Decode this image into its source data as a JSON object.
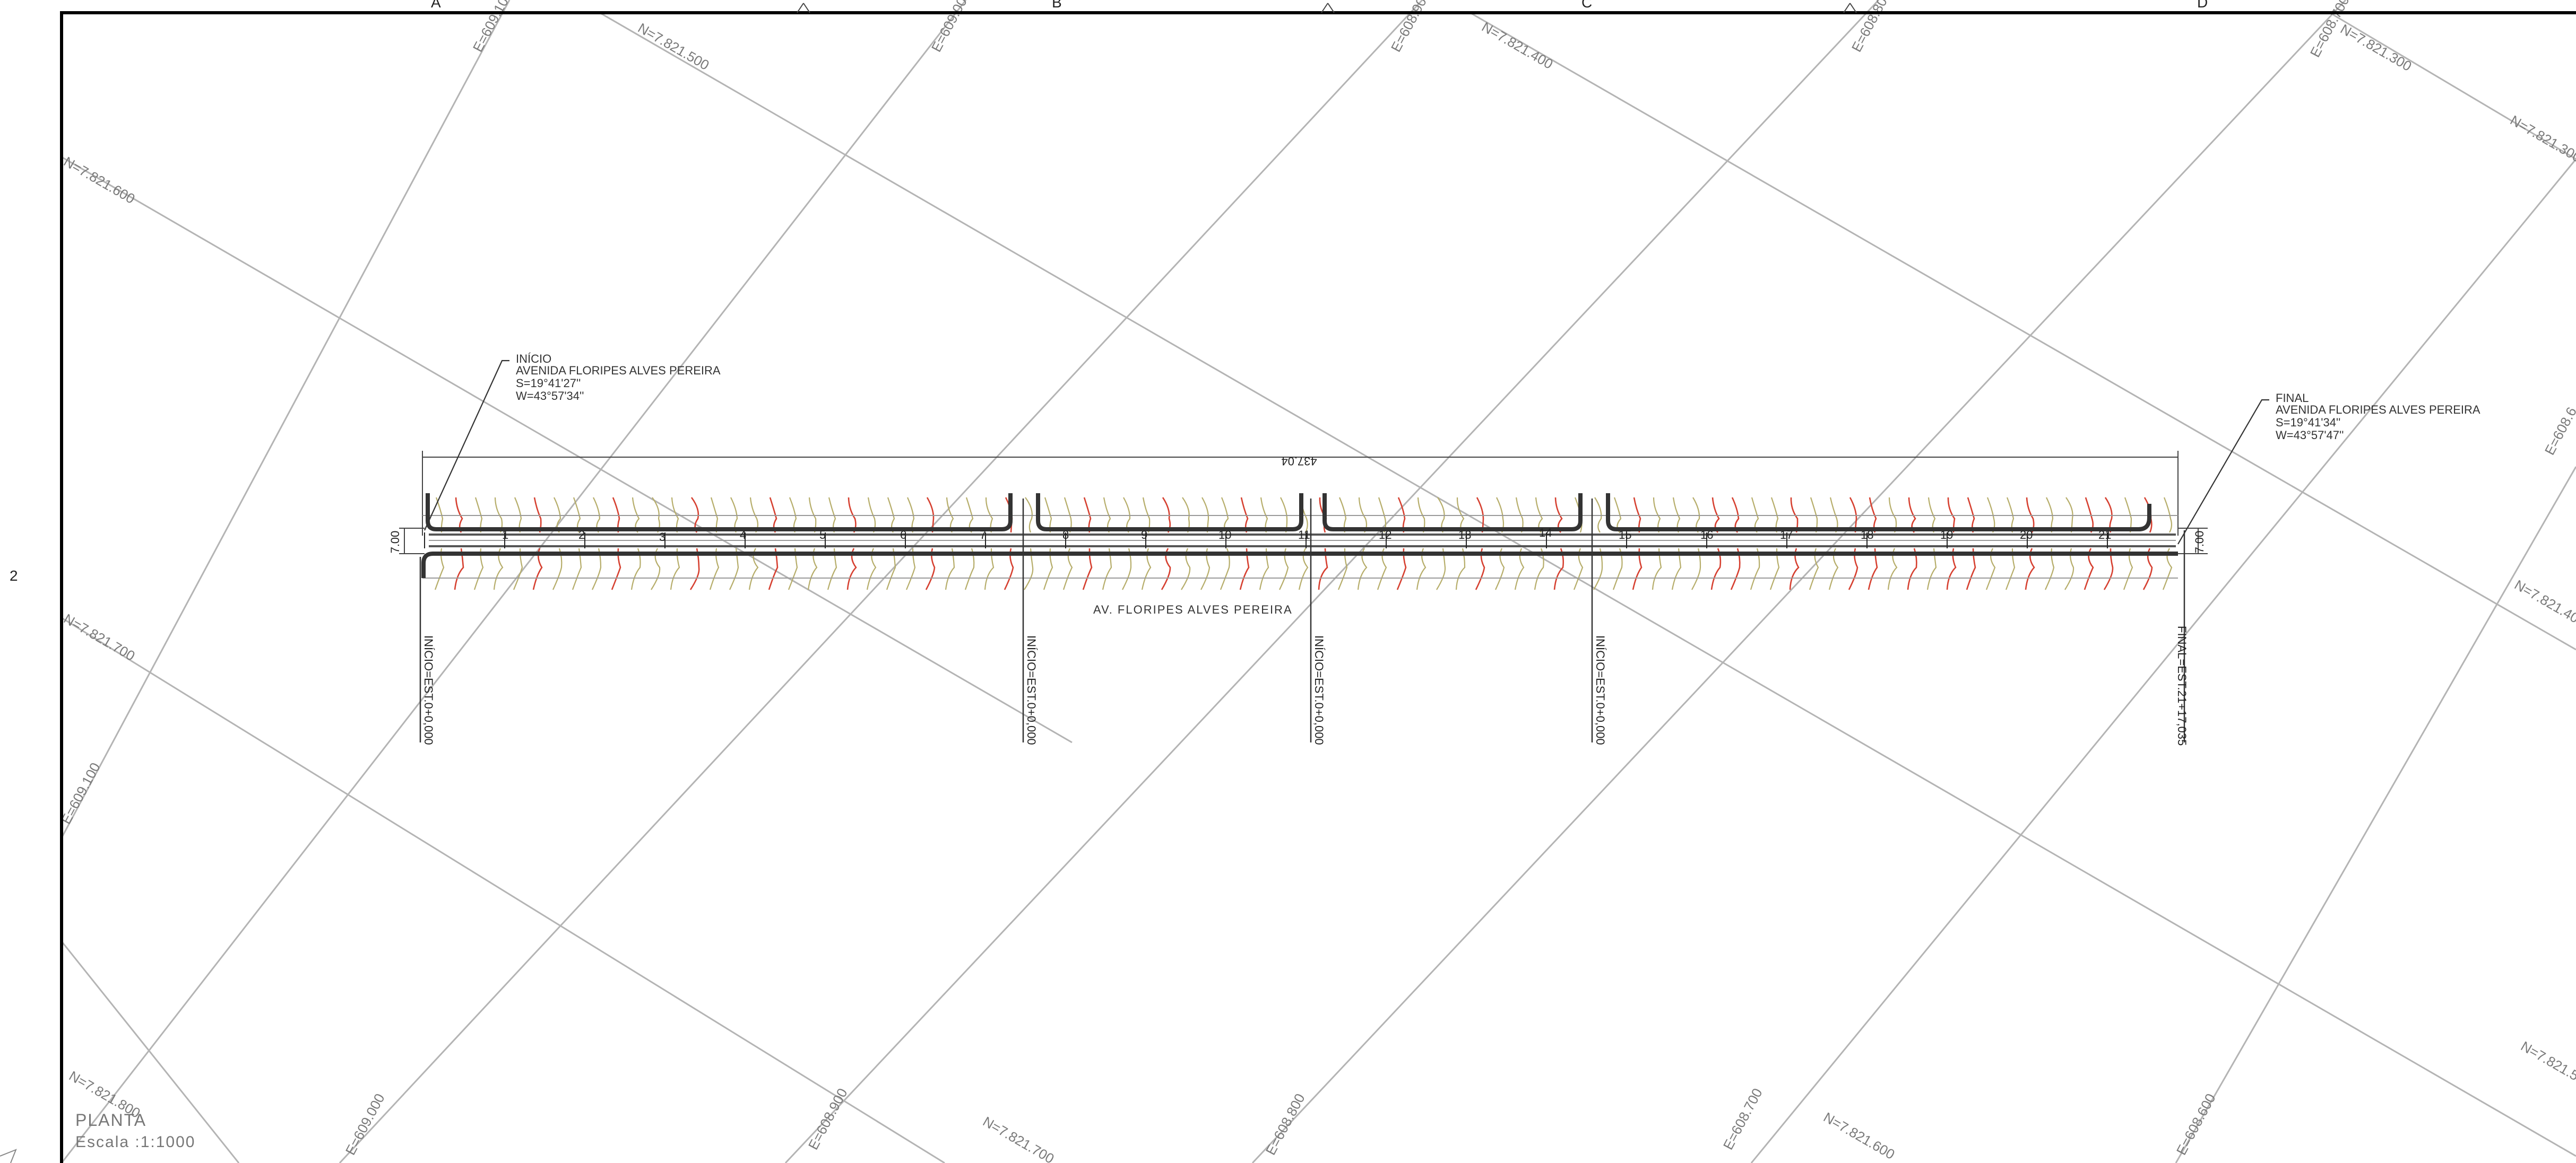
{
  "sheet": {
    "column_labels": [
      "A",
      "B",
      "C",
      "D"
    ],
    "row_label": "2",
    "title": "PLANTA",
    "scale": "Escala :1:1000"
  },
  "grid": {
    "easting_labels": [
      "E=609.100",
      "E=609.000",
      "E=608.900",
      "E=608.800",
      "E=608.700",
      "E=608.600"
    ],
    "northing_labels": [
      "N=7.821.300",
      "N=7.821.400",
      "N=7.821.500",
      "N=7.821.600",
      "N=7.821.700",
      "N=7.821.800"
    ],
    "labels": [
      "E=609.100",
      "E=609.000",
      "E=608.900",
      "E=608.800",
      "E=608.700",
      "N=7.821.500",
      "N=7.821.400",
      "N=7.821.300",
      "N=7.821.300",
      "N=7.821.600",
      "E=608.6",
      "N=7.821.40",
      "N=7.821.700",
      "E=609.100",
      "N=7.821.5",
      "N=7.821.800",
      "E=609.000",
      "E=608.900",
      "N=7.821.700",
      "E=608.800",
      "E=608.700",
      "N=7.821.600",
      "E=608.600"
    ]
  },
  "road": {
    "name": "AV. FLORIPES ALVES PEREIRA",
    "stations": [
      "1",
      "2",
      "3",
      "4",
      "5",
      "6",
      "7",
      "8",
      "9",
      "10",
      "11",
      "12",
      "13",
      "14",
      "15",
      "16",
      "17",
      "18",
      "19",
      "20",
      "21"
    ],
    "total_length": "437.04",
    "width_left": "7.00",
    "width_right": "7.00",
    "start_note": {
      "heading": "INÍCIO",
      "name": "AVENIDA FLORIPES ALVES PEREIRA",
      "lat": "S=19°41'27''",
      "lon": "W=43°57'34''"
    },
    "end_note": {
      "heading": "FINAL",
      "name": "AVENIDA FLORIPES ALVES PEREIRA",
      "lat": "S=19°41'34''",
      "lon": "W=43°57'47''"
    },
    "chainage_labels": [
      "INÍCIO=EST.0+0,000",
      "INÍCIO=EST.0+0,000",
      "INÍCIO=EST.0+0,000",
      "INÍCIO=EST.0+0,000",
      "FINAL=EST.21+17,035"
    ]
  },
  "colors": {
    "grid": "#b4b4b4",
    "contour_minor": "#b6ad6a",
    "contour_major": "#d64030",
    "road": "#333333"
  }
}
